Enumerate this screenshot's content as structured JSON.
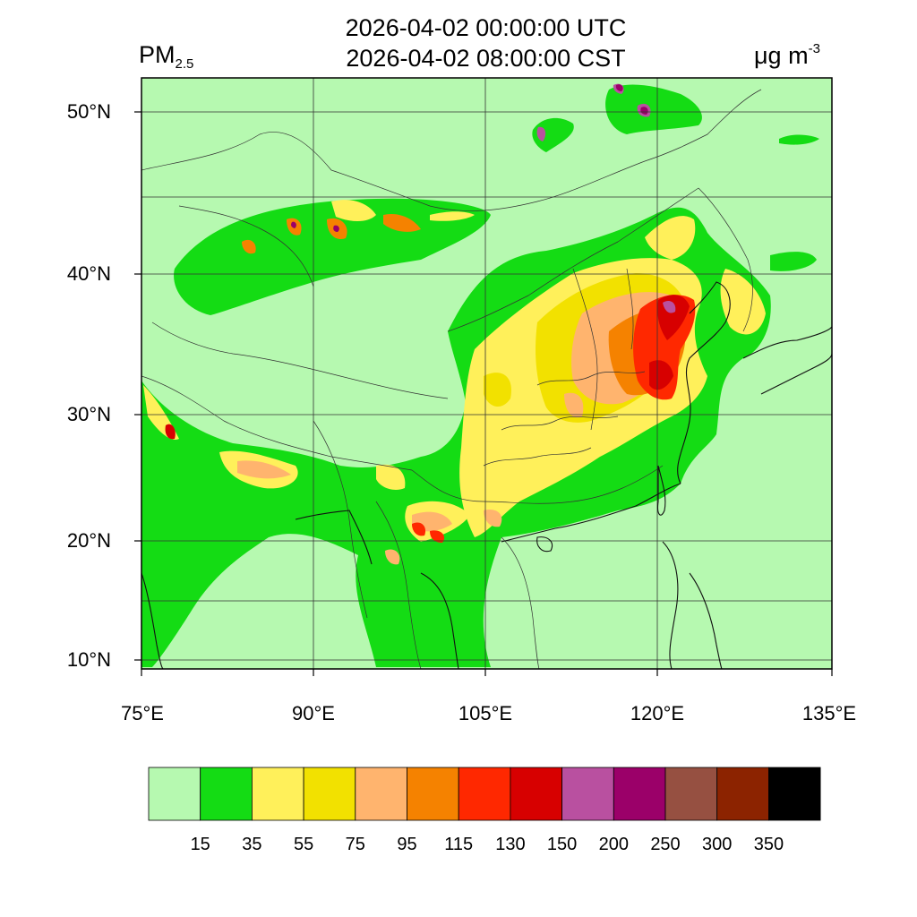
{
  "header": {
    "title_utc": "2026-04-02 00:00:00 UTC",
    "title_cst": "2026-04-02 08:00:00 CST",
    "variable": "PM",
    "variable_sub": "2.5",
    "unit": "μg m",
    "unit_sup": "-3"
  },
  "axes": {
    "lat_labels": [
      "50°N",
      "40°N",
      "30°N",
      "20°N",
      "10°N"
    ],
    "lon_labels": [
      "75°E",
      "90°E",
      "105°E",
      "120°E",
      "135°E"
    ]
  },
  "colorbar": {
    "colors": [
      "#b6f9b0",
      "#14dc14",
      "#fff05a",
      "#f2e100",
      "#ffb46e",
      "#f58200",
      "#ff2800",
      "#d70000",
      "#b950a0",
      "#9b0069",
      "#965041",
      "#8c2300",
      "#000000"
    ],
    "labels": [
      "15",
      "35",
      "55",
      "75",
      "95",
      "115",
      "130",
      "150",
      "200",
      "250",
      "300",
      "350"
    ]
  },
  "map_colors": {
    "background": "#b6f9b0",
    "border_line": "#333333"
  }
}
